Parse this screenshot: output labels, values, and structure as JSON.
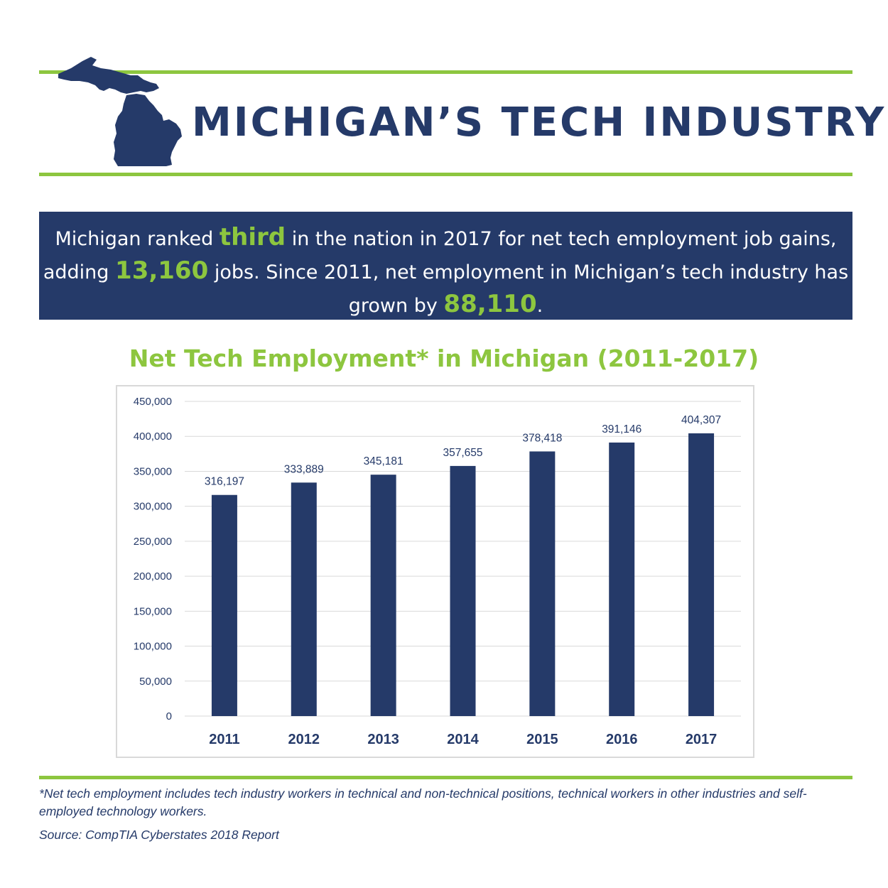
{
  "header": {
    "title": "MICHIGAN’S TECH INDUSTRY"
  },
  "banner": {
    "seg1": "Michigan ranked ",
    "hl1": "third",
    "seg2": " in the nation in 2017 for net tech employment job gains, adding ",
    "hl2": "13,160",
    "seg3": " jobs. Since 2011, net employment in Michigan’s tech industry has grown by ",
    "hl3": "88,110",
    "seg4": "."
  },
  "footer": {
    "footnote": "*Net tech employment includes tech industry workers in technical and non-technical positions, technical workers in other industries and self-employed technology workers.",
    "source": "Source: CompTIA Cyberstates 2018 Report"
  },
  "colors": {
    "navy": "#253a69",
    "green": "#8dc63f",
    "grid": "#d9d9d9",
    "text": "#253a69"
  },
  "chart_data": {
    "type": "bar",
    "title": "Net Tech Employment* in Michigan (2011-2017)",
    "categories": [
      "2011",
      "2012",
      "2013",
      "2014",
      "2015",
      "2016",
      "2017"
    ],
    "values": [
      316197,
      333889,
      345181,
      357655,
      378418,
      391146,
      404307
    ],
    "data_labels": [
      "316,197",
      "333,889",
      "345,181",
      "357,655",
      "378,418",
      "391,146",
      "404,307"
    ],
    "yticks": [
      0,
      50000,
      100000,
      150000,
      200000,
      250000,
      300000,
      350000,
      400000,
      450000
    ],
    "ytick_labels": [
      "0",
      "50,000",
      "100,000",
      "150,000",
      "200,000",
      "250,000",
      "300,000",
      "350,000",
      "400,000",
      "450,000"
    ],
    "ylim": [
      0,
      450000
    ],
    "grid": true,
    "legend": "none"
  }
}
